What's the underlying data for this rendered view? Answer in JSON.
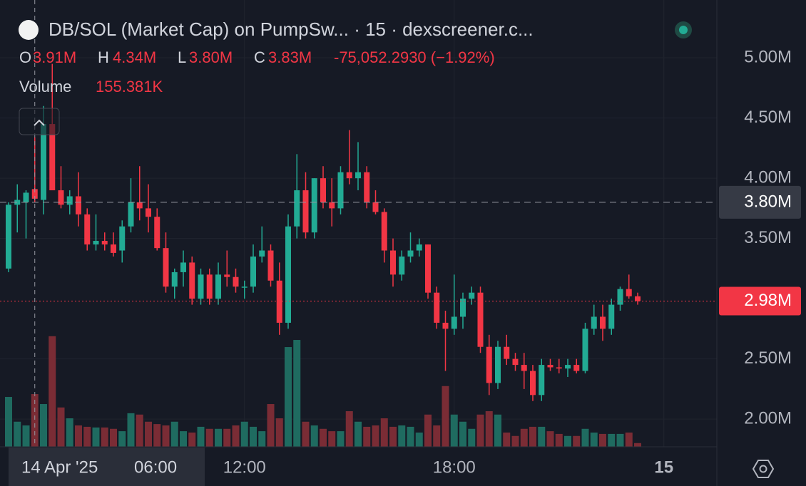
{
  "chart_data": {
    "type": "candlestick",
    "title": "DB/SOL (Market Cap) on PumpSw... · 15 · dexscreener.c...",
    "legend": {
      "labels": [
        "O",
        "H",
        "L",
        "C"
      ],
      "values": [
        "3.91M",
        "4.34M",
        "3.80M",
        "3.83M"
      ],
      "change": "-75,052.2930 (−1.92%)",
      "volume_label": "Volume",
      "volume_value": "155.381K"
    },
    "up_color": "#22ab94",
    "down_color": "#f23645",
    "up_volume_color": "#1f6b60",
    "down_volume_color": "#7a2c35",
    "open": [
      3.25,
      3.78,
      3.8,
      3.91,
      3.82,
      4.45,
      3.9,
      3.78,
      3.85,
      3.7,
      3.45,
      3.48,
      3.45,
      3.4,
      3.6,
      3.8,
      3.75,
      3.68,
      3.42,
      3.1,
      3.22,
      3.3,
      3.0,
      3.2,
      3.0,
      3.2,
      3.18,
      3.1,
      3.1,
      3.35,
      3.4,
      3.15,
      2.8,
      3.6,
      3.9,
      3.55,
      4.0,
      3.8,
      3.75,
      4.05,
      4.0,
      4.05,
      3.8,
      3.72,
      3.4,
      3.2,
      3.35,
      3.4,
      3.45,
      3.05,
      2.8,
      2.75,
      2.85,
      3.0,
      3.05,
      2.6,
      2.3,
      2.6,
      2.5,
      2.45,
      2.4,
      2.2,
      2.45,
      2.43,
      2.42,
      2.45,
      2.4,
      2.75,
      2.85,
      2.75,
      2.95,
      3.08,
      3.02
    ],
    "high": [
      3.8,
      3.95,
      3.9,
      4.34,
      4.6,
      4.95,
      4.1,
      3.9,
      4.05,
      3.75,
      3.7,
      3.55,
      3.55,
      3.65,
      4.0,
      4.1,
      3.95,
      3.75,
      3.55,
      3.25,
      3.4,
      3.35,
      3.25,
      3.25,
      3.3,
      3.4,
      3.25,
      3.15,
      3.45,
      3.6,
      3.45,
      3.3,
      3.7,
      4.2,
      4.05,
      4.0,
      4.1,
      4.0,
      4.1,
      4.4,
      4.3,
      4.1,
      3.9,
      3.75,
      3.5,
      3.4,
      3.55,
      3.5,
      3.45,
      3.1,
      2.9,
      3.2,
      3.05,
      3.1,
      3.1,
      2.7,
      2.65,
      2.7,
      2.55,
      2.55,
      2.45,
      2.5,
      2.5,
      2.5,
      2.5,
      2.5,
      2.8,
      2.95,
      2.95,
      3.0,
      3.1,
      3.2,
      3.05
    ],
    "low": [
      3.22,
      3.55,
      3.5,
      3.8,
      3.7,
      3.9,
      3.75,
      3.7,
      3.6,
      3.4,
      3.4,
      3.4,
      3.35,
      3.3,
      3.55,
      3.65,
      3.55,
      3.4,
      3.05,
      3.0,
      3.1,
      2.95,
      2.95,
      2.95,
      2.95,
      3.1,
      3.05,
      3.0,
      3.05,
      3.3,
      3.1,
      2.7,
      2.75,
      3.5,
      3.5,
      3.5,
      3.75,
      3.6,
      3.7,
      3.95,
      3.9,
      3.75,
      3.7,
      3.3,
      3.1,
      3.15,
      3.3,
      3.35,
      3.0,
      2.75,
      2.4,
      2.7,
      2.75,
      2.95,
      2.55,
      2.2,
      2.25,
      2.45,
      2.4,
      2.25,
      2.15,
      2.15,
      2.4,
      2.38,
      2.35,
      2.38,
      2.38,
      2.7,
      2.65,
      2.7,
      2.9,
      3.0,
      2.95
    ],
    "close": [
      3.78,
      3.82,
      3.88,
      3.83,
      4.45,
      3.9,
      3.78,
      3.85,
      3.7,
      3.45,
      3.48,
      3.45,
      3.38,
      3.6,
      3.8,
      3.75,
      3.68,
      3.42,
      3.1,
      3.22,
      3.3,
      3.0,
      3.2,
      3.0,
      3.2,
      3.18,
      3.1,
      3.1,
      3.35,
      3.4,
      3.15,
      2.8,
      3.6,
      3.9,
      3.55,
      4.0,
      3.8,
      3.75,
      4.05,
      4.0,
      4.05,
      3.8,
      3.72,
      3.4,
      3.2,
      3.35,
      3.4,
      3.45,
      3.05,
      2.8,
      2.75,
      2.85,
      3.0,
      3.05,
      2.6,
      2.3,
      2.6,
      2.5,
      2.45,
      2.4,
      2.2,
      2.45,
      2.43,
      2.42,
      2.45,
      2.4,
      2.75,
      2.85,
      2.75,
      2.95,
      3.08,
      3.02,
      2.98
    ],
    "volume": [
      147,
      74,
      63,
      155.381,
      126,
      326,
      116,
      84,
      63,
      59,
      57,
      57,
      53,
      46,
      99,
      95,
      74,
      67,
      63,
      74,
      46,
      42,
      59,
      53,
      53,
      53,
      63,
      74,
      59,
      46,
      126,
      84,
      294,
      315,
      74,
      63,
      53,
      46,
      46,
      105,
      74,
      59,
      63,
      84,
      59,
      63,
      59,
      42,
      95,
      63,
      179,
      95,
      74,
      53,
      95,
      105,
      95,
      42,
      32,
      53,
      59,
      59,
      46,
      38,
      32,
      32,
      53,
      42,
      38,
      38,
      38,
      42,
      11
    ],
    "ylim": [
      1.77,
      5.48
    ],
    "volume_ylim": [
      0,
      1317
    ],
    "yticks": [
      {
        "value": 5,
        "label": "5.00M"
      },
      {
        "value": 4.5,
        "label": "4.50M"
      },
      {
        "value": 4,
        "label": "4.00M"
      },
      {
        "value": 3.5,
        "label": "3.50M"
      },
      {
        "value": 2.5,
        "label": "2.50M"
      },
      {
        "value": 2,
        "label": "2.00M"
      }
    ],
    "xticks": [
      {
        "value": 27,
        "label": "12:00"
      },
      {
        "value": 51,
        "label": "18:00"
      },
      {
        "value": 75,
        "label": "15"
      }
    ],
    "crosshair": {
      "index": 3,
      "date": "14 Apr '25",
      "time": "06:00",
      "price": {
        "value": 3.8,
        "label": "3.80M"
      }
    },
    "last_price": {
      "value": 2.98,
      "label": "2.98M"
    },
    "grid": true
  }
}
